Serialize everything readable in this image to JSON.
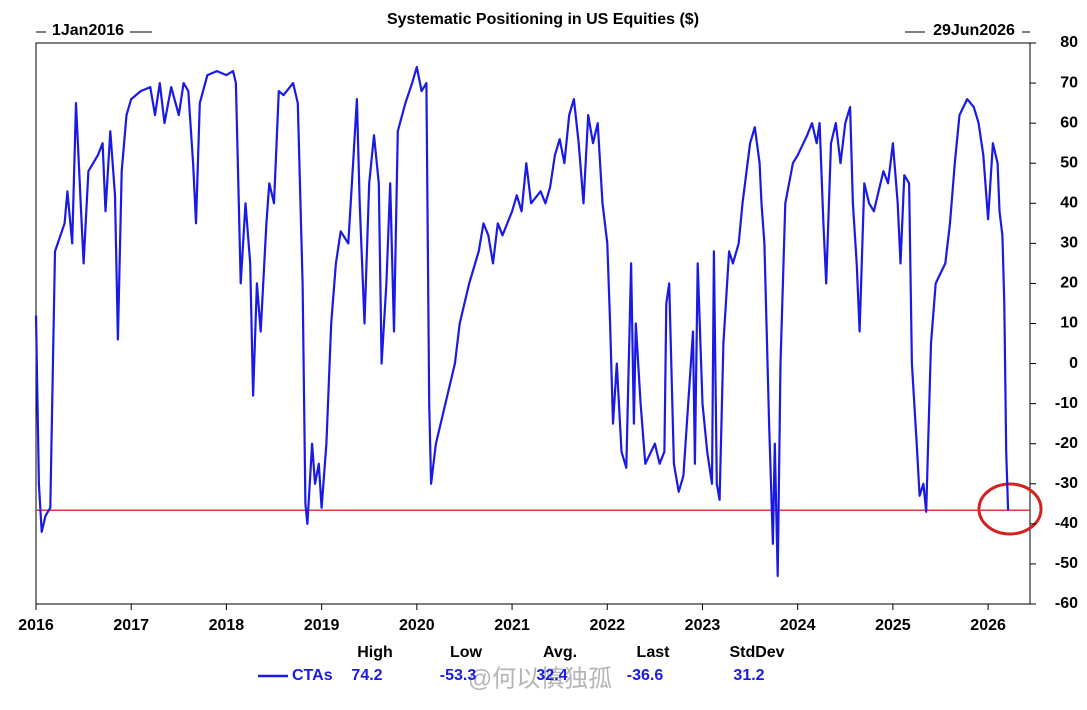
{
  "chart_data": {
    "type": "line",
    "title": "Systematic Positioning in US Equities ($)",
    "start_label": "1Jan2016",
    "end_label": "29Jun2026",
    "x": [
      2016.0,
      2016.03,
      2016.06,
      2016.1,
      2016.15,
      2016.2,
      2016.3,
      2016.33,
      2016.38,
      2016.42,
      2016.47,
      2016.5,
      2016.55,
      2016.65,
      2016.7,
      2016.73,
      2016.78,
      2016.83,
      2016.86,
      2016.9,
      2016.95,
      2017.0,
      2017.1,
      2017.2,
      2017.25,
      2017.3,
      2017.35,
      2017.42,
      2017.5,
      2017.55,
      2017.6,
      2017.65,
      2017.68,
      2017.72,
      2017.8,
      2017.9,
      2018.0,
      2018.07,
      2018.1,
      2018.13,
      2018.15,
      2018.2,
      2018.25,
      2018.28,
      2018.32,
      2018.36,
      2018.42,
      2018.45,
      2018.5,
      2018.55,
      2018.6,
      2018.7,
      2018.75,
      2018.8,
      2018.83,
      2018.85,
      2018.9,
      2018.93,
      2018.97,
      2019.0,
      2019.05,
      2019.1,
      2019.15,
      2019.2,
      2019.28,
      2019.33,
      2019.37,
      2019.4,
      2019.45,
      2019.5,
      2019.55,
      2019.6,
      2019.63,
      2019.68,
      2019.72,
      2019.76,
      2019.8,
      2019.88,
      2019.95,
      2020.0,
      2020.05,
      2020.1,
      2020.13,
      2020.15,
      2020.2,
      2020.3,
      2020.4,
      2020.45,
      2020.55,
      2020.65,
      2020.7,
      2020.75,
      2020.8,
      2020.85,
      2020.9,
      2021.0,
      2021.05,
      2021.1,
      2021.15,
      2021.2,
      2021.3,
      2021.35,
      2021.4,
      2021.45,
      2021.5,
      2021.55,
      2021.6,
      2021.65,
      2021.7,
      2021.75,
      2021.8,
      2021.85,
      2021.9,
      2021.95,
      2022.0,
      2022.03,
      2022.06,
      2022.1,
      2022.15,
      2022.2,
      2022.25,
      2022.28,
      2022.3,
      2022.35,
      2022.4,
      2022.5,
      2022.55,
      2022.6,
      2022.62,
      2022.65,
      2022.7,
      2022.75,
      2022.8,
      2022.85,
      2022.9,
      2022.92,
      2022.95,
      2023.0,
      2023.05,
      2023.1,
      2023.12,
      2023.15,
      2023.18,
      2023.22,
      2023.28,
      2023.32,
      2023.38,
      2023.42,
      2023.5,
      2023.55,
      2023.6,
      2023.62,
      2023.65,
      2023.7,
      2023.74,
      2023.76,
      2023.79,
      2023.82,
      2023.87,
      2023.95,
      2024.0,
      2024.1,
      2024.15,
      2024.2,
      2024.23,
      2024.27,
      2024.3,
      2024.35,
      2024.4,
      2024.45,
      2024.5,
      2024.55,
      2024.58,
      2024.62,
      2024.65,
      2024.7,
      2024.75,
      2024.8,
      2024.85,
      2024.9,
      2024.95,
      2025.0,
      2025.05,
      2025.08,
      2025.12,
      2025.17,
      2025.2,
      2025.25,
      2025.28,
      2025.32,
      2025.35,
      2025.4,
      2025.45,
      2025.55,
      2025.6,
      2025.65,
      2025.7,
      2025.78,
      2025.85,
      2025.9,
      2025.95,
      2026.0,
      2026.05,
      2026.1,
      2026.12,
      2026.15,
      2026.17,
      2026.19,
      2026.21
    ],
    "series": [
      {
        "name": "CTAs",
        "color": "#1a1ae6",
        "values": [
          12,
          -30,
          -42,
          -38,
          -36,
          28,
          35,
          43,
          30,
          65,
          40,
          25,
          48,
          52,
          55,
          38,
          58,
          42,
          6,
          48,
          62,
          66,
          68,
          69,
          62,
          70,
          60,
          69,
          62,
          70,
          68,
          50,
          35,
          65,
          72,
          73,
          72,
          73,
          70,
          40,
          20,
          40,
          25,
          -8,
          20,
          8,
          35,
          45,
          40,
          68,
          67,
          70,
          65,
          20,
          -35,
          -40,
          -20,
          -30,
          -25,
          -36,
          -20,
          10,
          25,
          33,
          30,
          50,
          66,
          40,
          10,
          45,
          57,
          45,
          0,
          20,
          45,
          8,
          58,
          65,
          70,
          74,
          68,
          70,
          -10,
          -30,
          -20,
          -10,
          0,
          10,
          20,
          28,
          35,
          32,
          25,
          35,
          32,
          38,
          42,
          38,
          50,
          40,
          43,
          40,
          44,
          52,
          56,
          50,
          62,
          66,
          55,
          40,
          62,
          55,
          60,
          40,
          30,
          10,
          -15,
          0,
          -22,
          -26,
          25,
          -15,
          10,
          -10,
          -25,
          -20,
          -25,
          -22,
          15,
          20,
          -25,
          -32,
          -28,
          -10,
          8,
          -25,
          25,
          -10,
          -22,
          -30,
          28,
          -30,
          -34,
          5,
          28,
          25,
          30,
          40,
          55,
          59,
          50,
          40,
          30,
          -15,
          -45,
          -20,
          -53,
          0,
          40,
          50,
          52,
          57,
          60,
          55,
          60,
          35,
          20,
          55,
          60,
          50,
          60,
          64,
          40,
          25,
          8,
          45,
          40,
          38,
          43,
          48,
          45,
          55,
          40,
          25,
          47,
          45,
          0,
          -20,
          -33,
          -30,
          -37,
          5,
          20,
          25,
          35,
          50,
          62,
          66,
          64,
          60,
          52,
          36,
          55,
          50,
          38,
          32,
          15,
          -22,
          -36.6
        ]
      }
    ],
    "xlim": [
      2016,
      2026.44
    ],
    "xticks": [
      2016,
      2017,
      2018,
      2019,
      2020,
      2021,
      2022,
      2023,
      2024,
      2025,
      2026
    ],
    "ylim": [
      -60,
      80
    ],
    "yticks": [
      80,
      70,
      60,
      50,
      40,
      30,
      20,
      10,
      0,
      -10,
      -20,
      -30,
      -40,
      -50,
      -60
    ],
    "hline": {
      "value": -36.6,
      "color": "#e03a3a"
    },
    "stats": {
      "headers": [
        "High",
        "Low",
        "Avg.",
        "Last",
        "StdDev"
      ],
      "values": [
        74.2,
        -53.3,
        32.4,
        -36.6,
        31.2
      ]
    },
    "watermark": "@何以慎独孤"
  }
}
